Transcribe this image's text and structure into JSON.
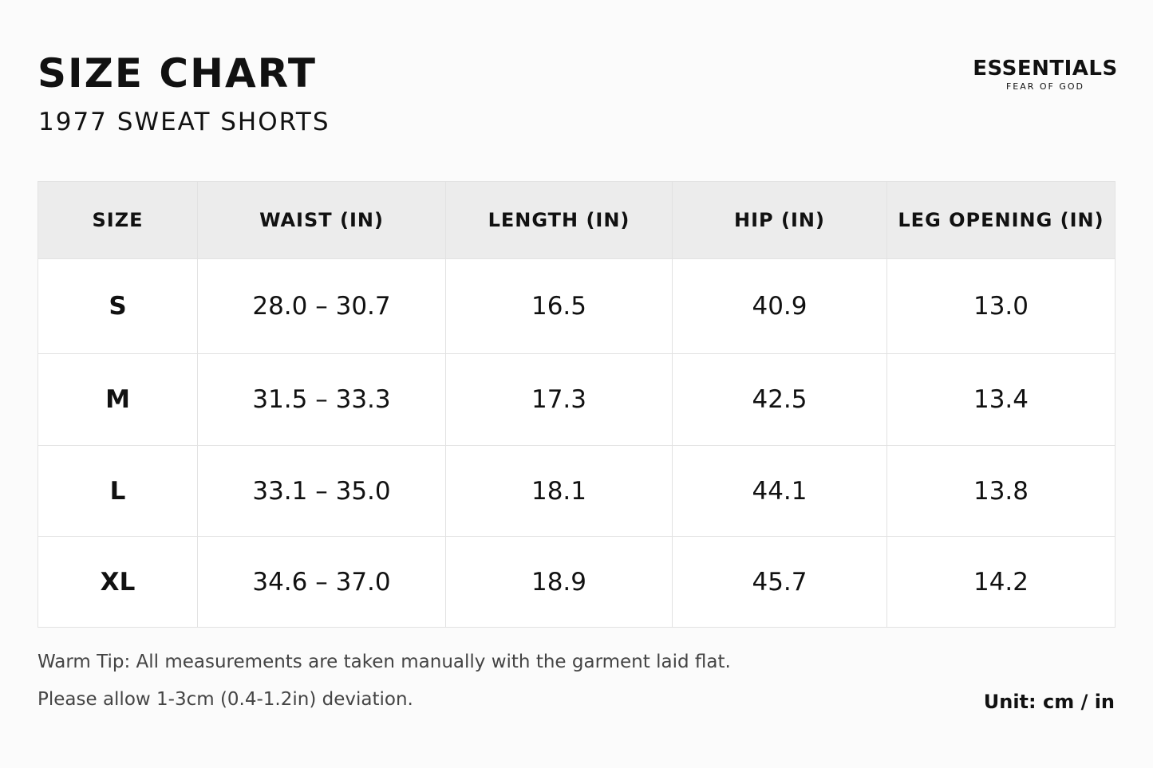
{
  "header": {
    "title": "SIZE CHART",
    "subtitle": "1977 SWEAT SHORTS"
  },
  "brand": {
    "name": "ESSENTIALS",
    "tagline": "FEAR OF GOD"
  },
  "table": {
    "columns": [
      "SIZE",
      "WAIST (IN)",
      "LENGTH (IN)",
      "HIP (IN)",
      "LEG OPENING (IN)"
    ],
    "rows": [
      [
        "S",
        "28.0 – 30.7",
        "16.5",
        "40.9",
        "13.0"
      ],
      [
        "M",
        "31.5 – 33.3",
        "17.3",
        "42.5",
        "13.4"
      ],
      [
        "L",
        "33.1 – 35.0",
        "18.1",
        "44.1",
        "13.8"
      ],
      [
        "XL",
        "34.6 – 37.0",
        "18.9",
        "45.7",
        "14.2"
      ]
    ]
  },
  "notes": [
    "Warm Tip: All measurements are taken manually with the garment laid flat.",
    "Please allow 1-3cm (0.4-1.2in) deviation."
  ],
  "unit": "Unit: cm / in"
}
